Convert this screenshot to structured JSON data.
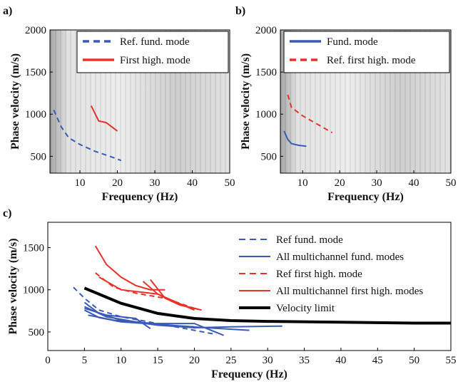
{
  "chart_data": [
    {
      "type": "line",
      "panel_label": "a)",
      "xlabel": "Frequency (Hz)",
      "ylabel": "Phase velocity (m/s)",
      "xlim": [
        2,
        50
      ],
      "ylim": [
        300,
        2000
      ],
      "xticks": [
        10,
        20,
        30,
        40,
        50
      ],
      "yticks": [
        500,
        1000,
        1500,
        2000
      ],
      "legend": "upper right",
      "series": [
        {
          "name": "Ref. fund. mode",
          "color": "#3a5bb5",
          "linestyle": "dashed",
          "curves": [
            {
              "x": [
                3,
                4,
                5,
                7,
                10,
                14,
                18,
                21
              ],
              "values": [
                1050,
                950,
                850,
                720,
                640,
                560,
                500,
                450
              ]
            }
          ]
        },
        {
          "name": "First high. mode",
          "color": "#e8312a",
          "linestyle": "solid",
          "curves": [
            {
              "x": [
                13,
                15,
                17,
                20
              ],
              "values": [
                1100,
                920,
                900,
                800
              ]
            }
          ]
        }
      ]
    },
    {
      "type": "line",
      "panel_label": "b)",
      "xlabel": "Frequency (Hz)",
      "ylabel": "Phase velocity (m/s)",
      "xlim": [
        4,
        50
      ],
      "ylim": [
        300,
        2000
      ],
      "xticks": [
        10,
        20,
        30,
        40,
        50
      ],
      "yticks": [
        500,
        1000,
        1500,
        2000
      ],
      "legend": "upper right",
      "series": [
        {
          "name": "Fund. mode",
          "color": "#3a5bb5",
          "linestyle": "solid",
          "curves": [
            {
              "x": [
                5,
                6,
                7,
                9,
                11
              ],
              "values": [
                800,
                700,
                650,
                630,
                620
              ]
            }
          ]
        },
        {
          "name": "Ref. first high. mode",
          "color": "#e8312a",
          "linestyle": "dashed",
          "curves": [
            {
              "x": [
                6,
                7,
                10,
                14,
                18
              ],
              "values": [
                1230,
                1080,
                980,
                880,
                780
              ]
            }
          ]
        }
      ]
    },
    {
      "type": "line",
      "panel_label": "c)",
      "xlabel": "Frequency (Hz)",
      "ylabel": "Phase velocity (m/s)",
      "xlim": [
        0,
        55
      ],
      "ylim": [
        280,
        1800
      ],
      "xticks": [
        0,
        5,
        10,
        15,
        20,
        25,
        30,
        35,
        40,
        45,
        50,
        55
      ],
      "yticks": [
        500,
        1000,
        1500
      ],
      "legend": "upper right",
      "series": [
        {
          "name": "Ref fund. mode",
          "color": "#3a5bb5",
          "linestyle": "dashed",
          "curves": [
            {
              "x": [
                3.5,
                5,
                7,
                10,
                15,
                20,
                23
              ],
              "values": [
                1030,
                900,
                760,
                680,
                600,
                520,
                470
              ]
            }
          ]
        },
        {
          "name": "All multichannel fund. modes",
          "color": "#3a5bb5",
          "linestyle": "solid",
          "curves": [
            {
              "x": [
                5,
                7,
                10,
                15,
                20,
                25,
                32
              ],
              "values": [
                850,
                720,
                640,
                580,
                550,
                560,
                570
              ]
            },
            {
              "x": [
                5,
                8,
                12,
                18,
                27.5
              ],
              "values": [
                800,
                680,
                620,
                570,
                520
              ]
            },
            {
              "x": [
                5,
                8,
                12,
                14
              ],
              "values": [
                780,
                700,
                660,
                540
              ]
            },
            {
              "x": [
                5,
                7,
                10,
                15,
                20
              ],
              "values": [
                760,
                670,
                620,
                590,
                560
              ]
            },
            {
              "x": [
                5.5,
                9,
                14,
                20,
                24
              ],
              "values": [
                700,
                640,
                600,
                600,
                460
              ]
            }
          ]
        },
        {
          "name": "Ref first high. mode",
          "color": "#e8312a",
          "linestyle": "dashed",
          "curves": [
            {
              "x": [
                6.5,
                9,
                12,
                16,
                20
              ],
              "values": [
                1200,
                1030,
                960,
                900,
                780
              ]
            }
          ]
        },
        {
          "name": "All multichannel first high. modes",
          "color": "#e8312a",
          "linestyle": "solid",
          "curves": [
            {
              "x": [
                6.5,
                8,
                10,
                12,
                14,
                16
              ],
              "values": [
                1520,
                1300,
                1150,
                1050,
                1000,
                1000
              ]
            },
            {
              "x": [
                13,
                15,
                17,
                19,
                20.5
              ],
              "values": [
                1100,
                950,
                860,
                800,
                770
              ]
            },
            {
              "x": [
                14,
                16,
                18,
                21
              ],
              "values": [
                1120,
                900,
                820,
                760
              ]
            },
            {
              "x": [
                7,
                10,
                15,
                20
              ],
              "values": [
                1150,
                1000,
                950,
                760
              ]
            }
          ]
        },
        {
          "name": "Velocity limit",
          "color": "#000000",
          "linestyle": "solid",
          "linewidth": 4,
          "curves": [
            {
              "x": [
                5,
                10,
                15,
                20,
                25,
                30,
                40,
                50,
                55
              ],
              "values": [
                1020,
                840,
                720,
                660,
                635,
                625,
                615,
                605,
                605
              ]
            }
          ]
        }
      ]
    }
  ]
}
